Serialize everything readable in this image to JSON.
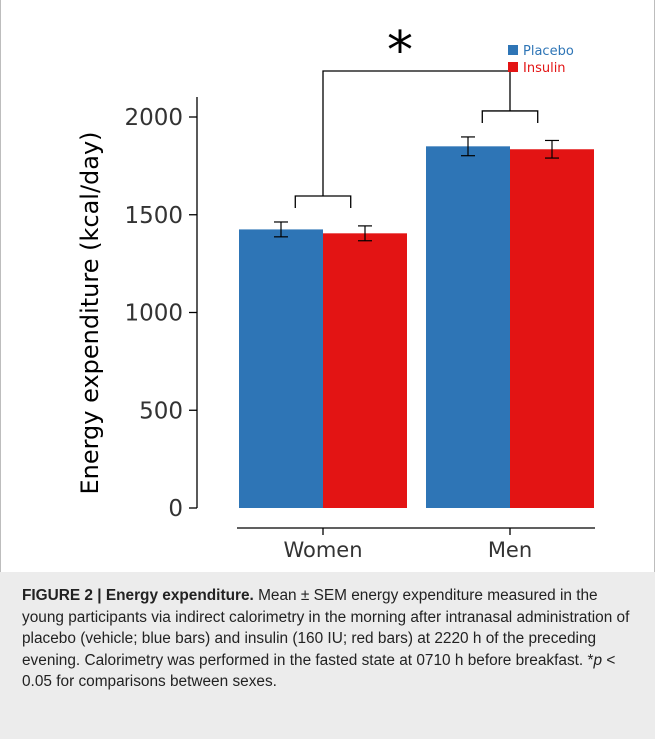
{
  "chart_data": {
    "type": "bar",
    "categories": [
      "Women",
      "Men"
    ],
    "series": [
      {
        "name": "Placebo",
        "color": "#2e75b6",
        "values": [
          1425,
          1850
        ],
        "errors": [
          38,
          48
        ]
      },
      {
        "name": "Insulin",
        "color": "#e31414",
        "values": [
          1405,
          1835
        ],
        "errors": [
          38,
          45
        ]
      }
    ],
    "ylabel": "Energy expenditure (kcal/day)",
    "ylim": [
      0,
      2000
    ],
    "yticks": [
      0,
      500,
      1000,
      1500,
      2000
    ],
    "legend_position": "top-right",
    "significance": {
      "symbol": "*"
    }
  },
  "caption": {
    "lead": "FIGURE 2 | Energy expenditure.",
    "body1": " Mean ± SEM energy expenditure measured in the young participants via indirect calorimetry in the morning after intranasal administration of placebo (vehicle; blue bars) and insulin (160 IU; red bars) at 2220 h of the preceding evening. Calorimetry was performed in the fasted state at 0710 h before breakfast. *",
    "p": "p",
    "body2": " < 0.05 for comparisons between sexes."
  }
}
